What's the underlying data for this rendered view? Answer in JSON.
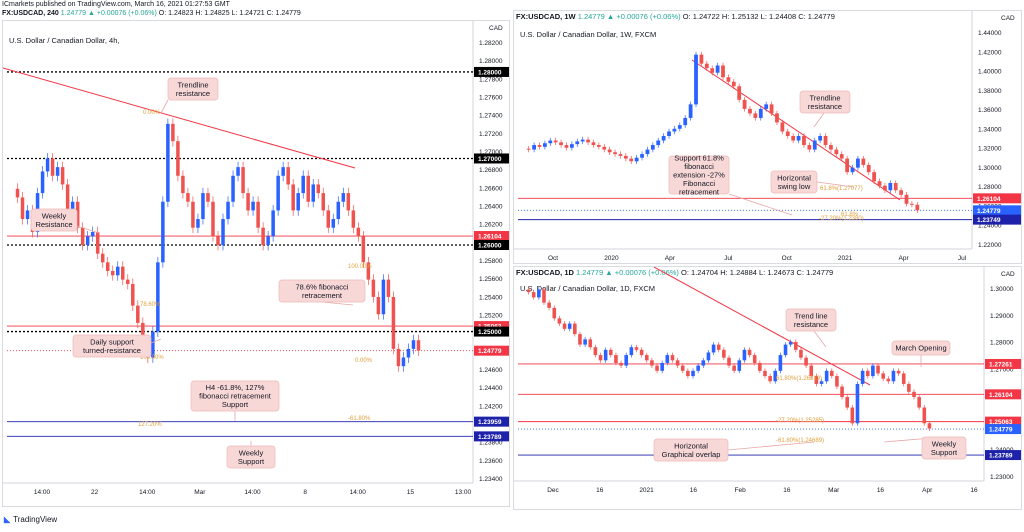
{
  "header": {
    "publisher": "ICmarkets published on TradingView.com, March 16, 2021 01:27:53 GMT",
    "symbol": "FX:USDCAD, 240",
    "change": "1.24779 ▲ +0.00076 (+0.06%)",
    "ohlc": "O: 1.24823 H: 1.24825 L: 1.24721 C: 1.24779"
  },
  "footer": {
    "logo_text": "TradingView"
  },
  "colors": {
    "up": "#2962ff",
    "down": "#ef5350",
    "trend": "#f23645",
    "support": "#1e22aa",
    "fib": "#e0a03a"
  },
  "chart_data": [
    {
      "type": "candlestick",
      "id": "h4",
      "title": "FX:USDCAD, 240",
      "name": "U.S. Dollar / Canadian Dollar, 4h,",
      "currency": "CAD",
      "ylim": [
        1.2325,
        1.2845
      ],
      "y_ticks": [
        "1.28200",
        "1.28000",
        "1.27800",
        "1.27600",
        "1.27400",
        "1.27200",
        "1.27000",
        "1.26800",
        "1.26600",
        "1.26400",
        "1.26200",
        "1.26000",
        "1.25800",
        "1.25600",
        "1.25400",
        "1.25200",
        "1.25000",
        "1.24800",
        "1.24600",
        "1.24400",
        "1.24200",
        "1.24000",
        "1.23800",
        "1.23600",
        "1.23400"
      ],
      "x_ticks": [
        "14:00",
        "22",
        "14:00",
        "Mar",
        "14:00",
        "8",
        "14:00",
        "15",
        "13:00"
      ],
      "levels": [
        {
          "value": 1.28,
          "label": "1.28000",
          "style": "dotted",
          "color": "#000000"
        },
        {
          "value": 1.27,
          "label": "1.27000",
          "style": "dotted",
          "color": "#000000"
        },
        {
          "value": 1.26104,
          "label": "1.26104",
          "style": "solid",
          "color": "#f23645"
        },
        {
          "value": 1.26,
          "label": "1.26000",
          "style": "dotted",
          "color": "#000000"
        },
        {
          "value": 1.25063,
          "label": "1.25063",
          "style": "solid",
          "color": "#f23645"
        },
        {
          "value": 1.25,
          "label": "1.25000",
          "style": "dotted",
          "color": "#000000"
        },
        {
          "value": 1.24779,
          "label": "1.24779",
          "style": "current",
          "color": "#f23645"
        },
        {
          "value": 1.23959,
          "label": "1.23959",
          "style": "solid",
          "color": "#1e22aa"
        },
        {
          "value": 1.23789,
          "label": "1.23789",
          "style": "solid",
          "color": "#1e22aa"
        }
      ],
      "fib_labels": [
        "0.00%",
        "100.00%",
        "78.60%",
        "100.00%",
        "0.00%",
        "127.20%",
        "-61.80%"
      ],
      "annotations": [
        "Trendline resistance",
        "Weekly Resistance",
        "78.6% fibonacci retracement",
        "Daily support turned-resistance",
        "H4 -61.8%, 127% fibonacci retracement Support",
        "Weekly Support"
      ],
      "series_close": [
        1.2655,
        1.263,
        1.264,
        1.2615,
        1.266,
        1.2685,
        1.27,
        1.268,
        1.269,
        1.267,
        1.264,
        1.265,
        1.262,
        1.26,
        1.261,
        1.2615,
        1.259,
        1.258,
        1.257,
        1.2565,
        1.2575,
        1.256,
        1.2555,
        1.253,
        1.251,
        1.249,
        1.247,
        1.25,
        1.258,
        1.265,
        1.274,
        1.272,
        1.268,
        1.266,
        1.265,
        1.262,
        1.263,
        1.266,
        1.265,
        1.261,
        1.26,
        1.263,
        1.265,
        1.268,
        1.269,
        1.266,
        1.264,
        1.265,
        1.262,
        1.26,
        1.261,
        1.264,
        1.268,
        1.269,
        1.267,
        1.264,
        1.266,
        1.268,
        1.265,
        1.267,
        1.266,
        1.264,
        1.262,
        1.263,
        1.265,
        1.266,
        1.264,
        1.262,
        1.261,
        1.258,
        1.256,
        1.254,
        1.252,
        1.256,
        1.254,
        1.248,
        1.246,
        1.247,
        1.248,
        1.249,
        1.2478
      ]
    },
    {
      "type": "candlestick",
      "id": "w1",
      "title": "FX:USDCAD, 1W",
      "change": "1.24779 ▲ +0.00076 (+0.06%)",
      "ohlc": "O: 1.24722 H: 1.25132 L: 1.24408 C: 1.24779",
      "name": "U.S. Dollar / Canadian Dollar, 1W, FXCM",
      "currency": "CAD",
      "ylim": [
        1.205,
        1.455
      ],
      "y_ticks": [
        "1.44000",
        "1.42000",
        "1.40000",
        "1.38000",
        "1.36000",
        "1.34000",
        "1.32000",
        "1.30000",
        "1.28000",
        "1.26000",
        "1.24000",
        "1.22000"
      ],
      "x_ticks": [
        "Oct",
        "2020",
        "Apr",
        "Jul",
        "Oct",
        "2021",
        "Apr",
        "Jul"
      ],
      "levels": [
        {
          "value": 1.26104,
          "label": "1.26104",
          "style": "solid",
          "color": "#f23645"
        },
        {
          "value": 1.24779,
          "label": "1.24779",
          "style": "current",
          "color": "#2962ff"
        },
        {
          "value": 1.23749,
          "label": "1.23749",
          "style": "solid",
          "color": "#1e22aa"
        }
      ],
      "fib_labels": [
        "61.8%(1.27077)",
        "-27.20%(1.2380)",
        "61.8%"
      ],
      "annotations": [
        "Trendline resistance",
        "Support 61.8% fibonacci extension -27% Fibonacci retracement",
        "Horizontal swing low"
      ],
      "series_close": [
        1.315,
        1.32,
        1.318,
        1.322,
        1.325,
        1.323,
        1.32,
        1.317,
        1.321,
        1.324,
        1.326,
        1.323,
        1.32,
        1.318,
        1.315,
        1.312,
        1.31,
        1.308,
        1.305,
        1.302,
        1.306,
        1.31,
        1.315,
        1.32,
        1.325,
        1.33,
        1.335,
        1.338,
        1.342,
        1.35,
        1.365,
        1.42,
        1.41,
        1.405,
        1.4,
        1.408,
        1.395,
        1.39,
        1.385,
        1.37,
        1.36,
        1.355,
        1.35,
        1.36,
        1.365,
        1.355,
        1.345,
        1.335,
        1.33,
        1.325,
        1.33,
        1.32,
        1.315,
        1.325,
        1.33,
        1.32,
        1.315,
        1.31,
        1.305,
        1.29,
        1.295,
        1.305,
        1.298,
        1.29,
        1.28,
        1.275,
        1.27,
        1.278,
        1.27,
        1.265,
        1.255,
        1.254,
        1.2478
      ]
    },
    {
      "type": "candlestick",
      "id": "d1",
      "title": "FX:USDCAD, 1D",
      "change": "1.24779 ▲ +0.00076 (+0.06%)",
      "ohlc": "O: 1.24704 H: 1.24884 L: 1.24673 C: 1.24779",
      "name": "U.S. Dollar / Canadian Dollar, 1D, FXCM",
      "currency": "CAD",
      "ylim": [
        1.228,
        1.305
      ],
      "y_ticks": [
        "1.30000",
        "1.29000",
        "1.28000",
        "1.27000",
        "1.26000",
        "1.25000",
        "1.24000",
        "1.23000"
      ],
      "x_ticks": [
        "Dec",
        "16",
        "2021",
        "16",
        "Feb",
        "16",
        "Mar",
        "16",
        "Apr",
        "16"
      ],
      "levels": [
        {
          "value": 1.27261,
          "label": "1.27261",
          "style": "solid",
          "color": "#f23645"
        },
        {
          "value": 1.26104,
          "label": "1.26104",
          "style": "solid",
          "color": "#f23645"
        },
        {
          "value": 1.25063,
          "label": "1.25063",
          "style": "solid",
          "color": "#f23645"
        },
        {
          "value": 1.24779,
          "label": "1.24779",
          "style": "current",
          "color": "#2962ff"
        },
        {
          "value": 1.23789,
          "label": "1.23789",
          "style": "solid",
          "color": "#1e22aa"
        }
      ],
      "fib_labels": [
        "61.80%(1.26819)",
        "-27.20%(1.25285)",
        "-61.80%(1.24689)"
      ],
      "annotations": [
        "Trend line resistance",
        "March Opening",
        "Horizontal Graphical overlap",
        "Weekly Support"
      ],
      "series_close": [
        1.3,
        1.298,
        1.301,
        1.296,
        1.294,
        1.29,
        1.288,
        1.286,
        1.288,
        1.284,
        1.28,
        1.282,
        1.279,
        1.276,
        1.274,
        1.278,
        1.276,
        1.273,
        1.272,
        1.276,
        1.279,
        1.278,
        1.276,
        1.274,
        1.272,
        1.27,
        1.273,
        1.276,
        1.274,
        1.272,
        1.27,
        1.268,
        1.27,
        1.272,
        1.274,
        1.277,
        1.28,
        1.278,
        1.275,
        1.272,
        1.27,
        1.274,
        1.278,
        1.276,
        1.273,
        1.27,
        1.268,
        1.266,
        1.27,
        1.276,
        1.28,
        1.281,
        1.278,
        1.275,
        1.272,
        1.268,
        1.265,
        1.266,
        1.27,
        1.268,
        1.264,
        1.26,
        1.256,
        1.25,
        1.265,
        1.27,
        1.268,
        1.272,
        1.269,
        1.267,
        1.266,
        1.27,
        1.269,
        1.265,
        1.262,
        1.26,
        1.256,
        1.25,
        1.248
      ]
    }
  ]
}
